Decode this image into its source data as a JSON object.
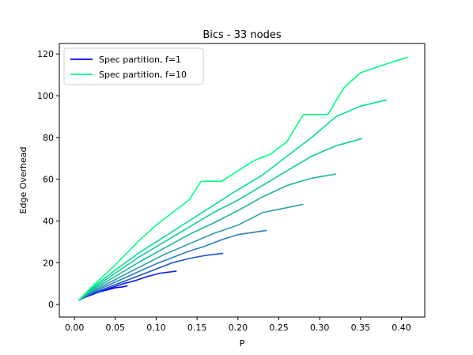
{
  "chart_data": {
    "type": "line",
    "title": "Bics - 33 nodes",
    "xlabel": "P",
    "ylabel": "Edge Overhead",
    "xlim": [
      -0.0185,
      0.4285
    ],
    "ylim": [
      -6,
      125
    ],
    "xticks": [
      "0.00",
      "0.05",
      "0.10",
      "0.15",
      "0.20",
      "0.25",
      "0.30",
      "0.35",
      "0.40"
    ],
    "yticks": [
      "0",
      "20",
      "40",
      "60",
      "80",
      "100",
      "120"
    ],
    "grid": false,
    "legend": {
      "position": "top-left",
      "entries": [
        {
          "label": "Spec partition, f=1",
          "color": "#0000ff"
        },
        {
          "label": "Spec partition, f=10",
          "color": "#00ff80"
        }
      ]
    },
    "series": [
      {
        "color": "#0000ff",
        "x": [
          0.005,
          0.01,
          0.02,
          0.03,
          0.04,
          0.05,
          0.06,
          0.065
        ],
        "y": [
          2,
          3,
          4.5,
          6,
          7,
          8,
          8.5,
          9
        ]
      },
      {
        "color": "#0a1ce8",
        "x": [
          0.005,
          0.015,
          0.03,
          0.045,
          0.06,
          0.075,
          0.09,
          0.105,
          0.125
        ],
        "y": [
          2,
          4,
          6,
          8,
          10,
          11.5,
          13.5,
          15,
          16
        ]
      },
      {
        "color": "#1c55d0",
        "x": [
          0.005,
          0.02,
          0.04,
          0.06,
          0.08,
          0.1,
          0.12,
          0.14,
          0.16,
          0.182
        ],
        "y": [
          2,
          5,
          8,
          11,
          14,
          17,
          20,
          22,
          23.5,
          24.5
        ]
      },
      {
        "color": "#2c7fbe",
        "x": [
          0.005,
          0.02,
          0.04,
          0.06,
          0.08,
          0.1,
          0.12,
          0.14,
          0.16,
          0.18,
          0.2,
          0.235
        ],
        "y": [
          2,
          5.5,
          9,
          12.5,
          16,
          19.5,
          22.5,
          25.5,
          28,
          31,
          33.5,
          35.5
        ]
      },
      {
        "color": "#2c9ea8",
        "x": [
          0.005,
          0.02,
          0.05,
          0.08,
          0.11,
          0.14,
          0.17,
          0.2,
          0.23,
          0.255,
          0.28
        ],
        "y": [
          2,
          6,
          12,
          18,
          24,
          29,
          34,
          38,
          44,
          46,
          48
        ]
      },
      {
        "color": "#1cb5a0",
        "x": [
          0.005,
          0.02,
          0.05,
          0.08,
          0.11,
          0.14,
          0.17,
          0.2,
          0.23,
          0.26,
          0.29,
          0.32
        ],
        "y": [
          2,
          6.5,
          13.5,
          20.5,
          27,
          33.5,
          39,
          45,
          51.5,
          57,
          60.5,
          62.5
        ]
      },
      {
        "color": "#10cc98",
        "x": [
          0.005,
          0.02,
          0.05,
          0.08,
          0.11,
          0.14,
          0.17,
          0.2,
          0.23,
          0.26,
          0.29,
          0.32,
          0.352
        ],
        "y": [
          2,
          7,
          15,
          23,
          30,
          37,
          44,
          50,
          57,
          64,
          71,
          76,
          79.5
        ]
      },
      {
        "color": "#08de90",
        "x": [
          0.005,
          0.02,
          0.05,
          0.08,
          0.11,
          0.14,
          0.17,
          0.2,
          0.23,
          0.26,
          0.29,
          0.32,
          0.35,
          0.382
        ],
        "y": [
          2,
          7.5,
          16.5,
          25,
          32.5,
          40,
          47.5,
          55,
          62,
          71,
          80,
          90,
          95,
          98
        ]
      },
      {
        "color": "#00ff80",
        "x": [
          0.005,
          0.02,
          0.05,
          0.08,
          0.1,
          0.12,
          0.14,
          0.155,
          0.18,
          0.2,
          0.22,
          0.24,
          0.26,
          0.28,
          0.31,
          0.33,
          0.35,
          0.38,
          0.408
        ],
        "y": [
          2,
          8,
          19,
          31,
          38,
          44,
          50,
          59,
          59,
          64,
          69,
          72,
          78,
          91,
          91,
          104,
          111,
          115,
          118.5
        ]
      }
    ]
  }
}
